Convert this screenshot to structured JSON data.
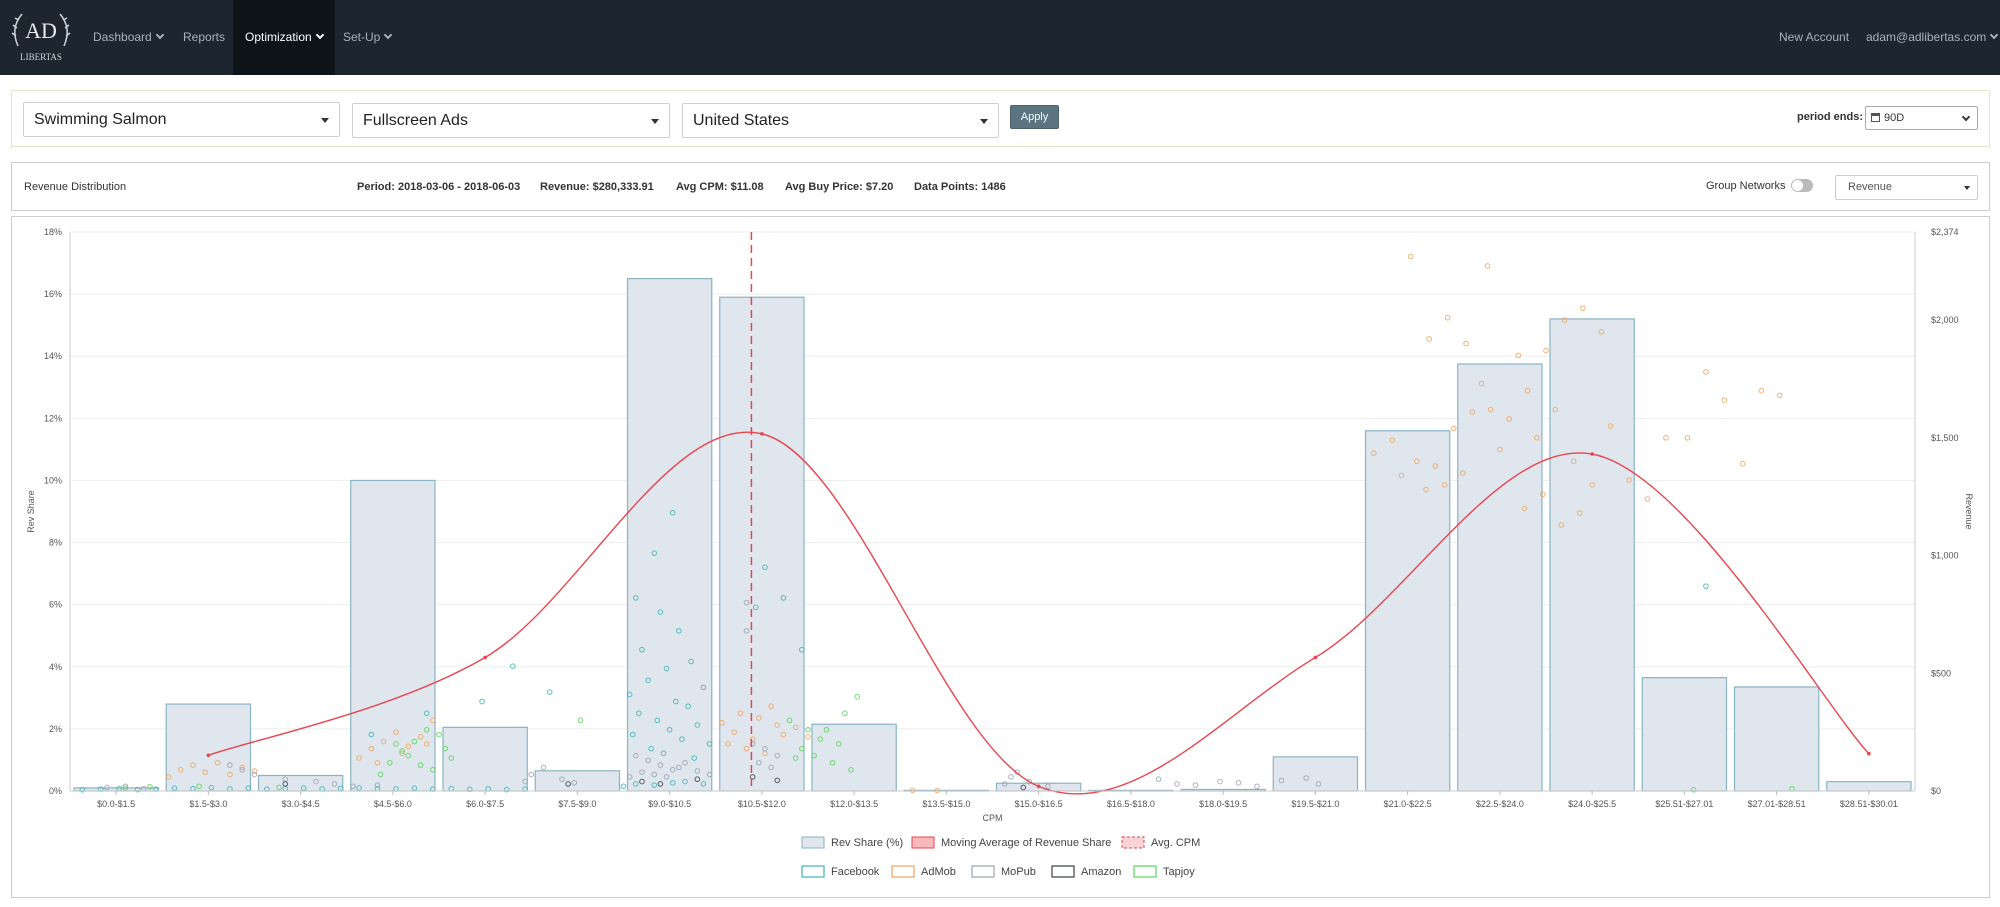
{
  "nav": {
    "logo_text": "AD LIBERTAS",
    "dashboard": "Dashboard",
    "reports": "Reports",
    "optimization": "Optimization",
    "setup": "Set-Up",
    "new_account": "New Account",
    "user": "adam@adlibertas.com"
  },
  "filters": {
    "app": "Swimming Salmon",
    "ad_type": "Fullscreen Ads",
    "country": "United States",
    "apply": "Apply",
    "period_label": "period ends:",
    "period_value": "90D"
  },
  "stats": {
    "section": "Revenue Distribution",
    "period": "Period: 2018-03-06 - 2018-06-03",
    "revenue": "Revenue: $280,333.91",
    "avg_cpm": "Avg CPM: $11.08",
    "avg_buy": "Avg Buy Price: $7.20",
    "points": "Data Points: 1486",
    "group_networks": "Group Networks",
    "metric": "Revenue"
  },
  "colors": {
    "bar_fill": "#dfe6ee",
    "bar_stroke": "#8ab4c4",
    "moving_avg": "#e8454f",
    "facebook": "#3cb4b8",
    "admob": "#f0a45a",
    "mopub": "#9aa2b4",
    "amazon": "#3a3f48",
    "tapjoy": "#5ad45a"
  },
  "chart_data": {
    "type": "bar",
    "xlabel": "CPM",
    "ylabel": "Rev Share",
    "y2label": "Revenue",
    "ylim": [
      0,
      18
    ],
    "y2lim": [
      0,
      2374
    ],
    "yticks": [
      "0%",
      "2%",
      "4%",
      "6%",
      "8%",
      "10%",
      "12%",
      "14%",
      "16%",
      "18%"
    ],
    "y2ticks": [
      {
        "v": 0,
        "label": "$0"
      },
      {
        "v": 500,
        "label": "$500"
      },
      {
        "v": 1000,
        "label": "$1,000"
      },
      {
        "v": 1500,
        "label": "$1,500"
      },
      {
        "v": 2000,
        "label": "$2,000"
      },
      {
        "v": 2374,
        "label": "$2,374"
      }
    ],
    "categories": [
      "$0.0-$1.5",
      "$1.5-$3.0",
      "$3.0-$4.5",
      "$4.5-$6.0",
      "$6.0-$7.5",
      "$7.5-$9.0",
      "$9.0-$10.5",
      "$10.5-$12.0",
      "$12.0-$13.5",
      "$13.5-$15.0",
      "$15.0-$16.5",
      "$16.5-$18.0",
      "$18.0-$19.5",
      "$19.5-$21.0",
      "$21.0-$22.5",
      "$22.5-$24.0",
      "$24.0-$25.5",
      "$25.51-$27.01",
      "$27.01-$28.51",
      "$28.51-$30.01"
    ],
    "series": [
      {
        "name": "Rev Share (%)",
        "values": [
          0.1,
          2.8,
          0.5,
          10.0,
          2.05,
          0.65,
          16.5,
          15.9,
          2.15,
          0.02,
          0.25,
          0.02,
          0.05,
          1.1,
          11.6,
          13.75,
          15.2,
          3.65,
          3.35,
          0.3
        ]
      },
      {
        "name": "Moving Average of Revenue Share",
        "values": [
          null,
          1.15,
          null,
          null,
          4.3,
          null,
          null,
          11.5,
          null,
          null,
          0.15,
          null,
          null,
          4.3,
          null,
          null,
          10.85,
          null,
          null,
          1.2
        ]
      }
    ],
    "avg_cpm": 11.08,
    "legend": [
      "Rev Share (%)",
      "Moving Average of Revenue Share",
      "Avg. CPM",
      "Facebook",
      "AdMob",
      "MoPub",
      "Amazon",
      "Tapjoy"
    ],
    "scatter": [
      {
        "name": "Facebook",
        "points": [
          [
            9.8,
            1182
          ],
          [
            9.5,
            1010
          ],
          [
            9.2,
            820
          ],
          [
            9.6,
            760
          ],
          [
            9.9,
            680
          ],
          [
            9.3,
            600
          ],
          [
            10.1,
            550
          ],
          [
            9.7,
            520
          ],
          [
            9.4,
            470
          ],
          [
            10.3,
            440
          ],
          [
            9.1,
            410
          ],
          [
            9.85,
            380
          ],
          [
            10.05,
            360
          ],
          [
            9.25,
            330
          ],
          [
            9.55,
            300
          ],
          [
            10.2,
            280
          ],
          [
            9.75,
            260
          ],
          [
            9.15,
            240
          ],
          [
            9.95,
            220
          ],
          [
            10.4,
            200
          ],
          [
            9.45,
            180
          ],
          [
            9.65,
            160
          ],
          [
            10.15,
            140
          ],
          [
            11.3,
            950
          ],
          [
            11.6,
            820
          ],
          [
            11.9,
            600
          ],
          [
            11.15,
            780
          ],
          [
            7.2,
            530
          ],
          [
            7.8,
            420
          ],
          [
            5.8,
            330
          ],
          [
            4.9,
            240
          ],
          [
            6.7,
            380
          ],
          [
            26.6,
            870
          ],
          [
            0.2,
            5
          ],
          [
            0.5,
            8
          ],
          [
            0.8,
            10
          ],
          [
            1.1,
            6
          ],
          [
            1.4,
            8
          ],
          [
            1.7,
            12
          ],
          [
            2.0,
            10
          ],
          [
            2.3,
            14
          ],
          [
            2.6,
            9
          ],
          [
            2.9,
            12
          ],
          [
            3.2,
            8
          ],
          [
            3.5,
            10
          ],
          [
            3.8,
            12
          ],
          [
            4.1,
            9
          ],
          [
            4.4,
            11
          ],
          [
            4.7,
            13
          ],
          [
            5.0,
            10
          ],
          [
            5.3,
            9
          ],
          [
            5.6,
            12
          ],
          [
            5.9,
            8
          ],
          [
            6.2,
            10
          ],
          [
            6.5,
            7
          ],
          [
            6.8,
            9
          ],
          [
            7.1,
            6
          ],
          [
            7.4,
            8
          ],
          [
            9.0,
            20
          ],
          [
            9.2,
            30
          ],
          [
            9.5,
            25
          ],
          [
            9.8,
            35
          ],
          [
            10.0,
            40
          ],
          [
            10.3,
            30
          ]
        ]
      },
      {
        "name": "AdMob",
        "points": [
          [
            21.8,
            2270
          ],
          [
            22.1,
            1920
          ],
          [
            22.4,
            2010
          ],
          [
            22.7,
            1900
          ],
          [
            22.95,
            1730
          ],
          [
            21.2,
            1435
          ],
          [
            21.5,
            1490
          ],
          [
            21.9,
            1400
          ],
          [
            22.2,
            1380
          ],
          [
            22.5,
            1540
          ],
          [
            22.8,
            1610
          ],
          [
            23.1,
            1620
          ],
          [
            23.4,
            1580
          ],
          [
            23.7,
            1700
          ],
          [
            24.0,
            1870
          ],
          [
            24.3,
            2000
          ],
          [
            24.6,
            2050
          ],
          [
            24.9,
            1950
          ],
          [
            23.05,
            2230
          ],
          [
            23.55,
            1850
          ],
          [
            23.85,
            1500
          ],
          [
            24.15,
            1620
          ],
          [
            24.45,
            1400
          ],
          [
            24.75,
            1300
          ],
          [
            25.05,
            1550
          ],
          [
            25.35,
            1320
          ],
          [
            25.65,
            1240
          ],
          [
            25.95,
            1500
          ],
          [
            26.3,
            1500
          ],
          [
            26.6,
            1780
          ],
          [
            26.9,
            1660
          ],
          [
            27.2,
            1390
          ],
          [
            27.5,
            1700
          ],
          [
            27.8,
            1680
          ],
          [
            23.25,
            1450
          ],
          [
            23.65,
            1200
          ],
          [
            23.95,
            1260
          ],
          [
            24.25,
            1130
          ],
          [
            24.55,
            1180
          ],
          [
            22.35,
            1300
          ],
          [
            22.65,
            1350
          ],
          [
            22.05,
            1280
          ],
          [
            21.65,
            1340
          ],
          [
            1.6,
            60
          ],
          [
            1.8,
            90
          ],
          [
            2.0,
            110
          ],
          [
            2.2,
            80
          ],
          [
            2.4,
            120
          ],
          [
            2.6,
            70
          ],
          [
            2.8,
            100
          ],
          [
            3.0,
            85
          ],
          [
            4.7,
            140
          ],
          [
            4.9,
            180
          ],
          [
            5.1,
            210
          ],
          [
            5.3,
            250
          ],
          [
            5.5,
            190
          ],
          [
            5.7,
            230
          ],
          [
            5.9,
            300
          ],
          [
            5.0,
            120
          ],
          [
            5.4,
            160
          ],
          [
            5.8,
            200
          ],
          [
            10.6,
            290
          ],
          [
            10.9,
            330
          ],
          [
            11.2,
            310
          ],
          [
            11.5,
            280
          ],
          [
            10.8,
            250
          ],
          [
            11.1,
            220
          ],
          [
            11.4,
            360
          ],
          [
            10.7,
            200
          ],
          [
            11.0,
            180
          ],
          [
            11.3,
            160
          ],
          [
            11.6,
            240
          ],
          [
            11.8,
            270
          ],
          [
            12.0,
            230
          ],
          [
            13.7,
            3
          ],
          [
            14.1,
            2
          ]
        ]
      },
      {
        "name": "MoPub",
        "points": [
          [
            9.2,
            150
          ],
          [
            9.4,
            130
          ],
          [
            9.6,
            110
          ],
          [
            9.8,
            90
          ],
          [
            10.0,
            120
          ],
          [
            9.3,
            80
          ],
          [
            9.5,
            70
          ],
          [
            9.7,
            60
          ],
          [
            9.9,
            100
          ],
          [
            10.2,
            85
          ],
          [
            9.1,
            60
          ],
          [
            10.4,
            70
          ],
          [
            11.1,
            200
          ],
          [
            11.3,
            180
          ],
          [
            11.5,
            150
          ],
          [
            11.2,
            120
          ],
          [
            11.4,
            100
          ],
          [
            11.0,
            800
          ],
          [
            11.0,
            680
          ],
          [
            2.6,
            110
          ],
          [
            2.8,
            90
          ],
          [
            3.0,
            70
          ],
          [
            3.5,
            50
          ],
          [
            4.0,
            40
          ],
          [
            4.3,
            30
          ],
          [
            4.6,
            20
          ],
          [
            5.0,
            25
          ],
          [
            7.5,
            70
          ],
          [
            7.7,
            100
          ],
          [
            7.4,
            40
          ],
          [
            8.0,
            50
          ],
          [
            8.2,
            35
          ],
          [
            15.3,
            60
          ],
          [
            15.4,
            80
          ],
          [
            15.6,
            40
          ],
          [
            15.2,
            30
          ],
          [
            15.9,
            20
          ],
          [
            17.7,
            50
          ],
          [
            18.0,
            30
          ],
          [
            18.7,
            40
          ],
          [
            18.3,
            25
          ],
          [
            19.0,
            35
          ],
          [
            19.7,
            45
          ],
          [
            20.1,
            55
          ],
          [
            20.3,
            30
          ],
          [
            19.3,
            20
          ],
          [
            0.6,
            15
          ],
          [
            0.9,
            20
          ],
          [
            1.2,
            10
          ]
        ]
      },
      {
        "name": "Amazon",
        "points": [
          [
            9.3,
            40
          ],
          [
            9.6,
            30
          ],
          [
            10.2,
            50
          ],
          [
            11.1,
            60
          ],
          [
            11.5,
            45
          ],
          [
            8.1,
            30
          ],
          [
            3.5,
            30
          ],
          [
            15.5,
            15
          ]
        ]
      },
      {
        "name": "Tapjoy",
        "points": [
          [
            5.2,
            120
          ],
          [
            5.4,
            170
          ],
          [
            5.6,
            210
          ],
          [
            5.8,
            260
          ],
          [
            6.0,
            240
          ],
          [
            5.3,
            200
          ],
          [
            5.5,
            150
          ],
          [
            5.7,
            110
          ],
          [
            5.9,
            90
          ],
          [
            6.1,
            180
          ],
          [
            5.05,
            70
          ],
          [
            6.2,
            140
          ],
          [
            11.7,
            300
          ],
          [
            12.0,
            260
          ],
          [
            12.2,
            220
          ],
          [
            12.5,
            200
          ],
          [
            12.3,
            260
          ],
          [
            12.6,
            330
          ],
          [
            12.8,
            400
          ],
          [
            11.9,
            180
          ],
          [
            12.1,
            150
          ],
          [
            12.4,
            120
          ],
          [
            12.7,
            90
          ],
          [
            11.8,
            140
          ],
          [
            8.3,
            300
          ],
          [
            28.0,
            10
          ],
          [
            26.4,
            5
          ],
          [
            0.9,
            12
          ],
          [
            1.3,
            18
          ],
          [
            2.1,
            20
          ],
          [
            3.4,
            15
          ]
        ]
      }
    ]
  }
}
